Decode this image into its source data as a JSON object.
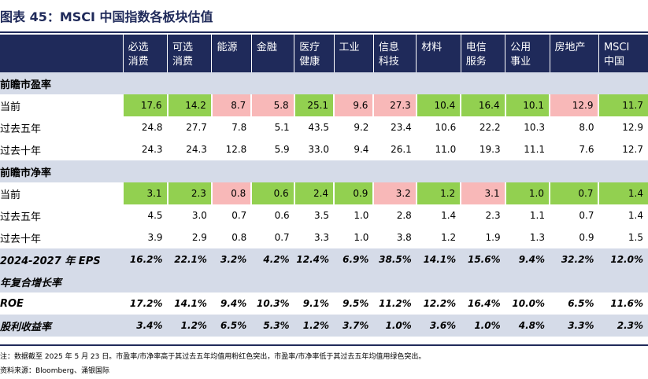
{
  "title": "图表 45：MSCI 中国指数各板块估值",
  "columns": [
    {
      "line1": "必选",
      "line2": "消费"
    },
    {
      "line1": "可选",
      "line2": "消费"
    },
    {
      "line1": "能源",
      "line2": ""
    },
    {
      "line1": "金融",
      "line2": ""
    },
    {
      "line1": "医疗",
      "line2": "健康"
    },
    {
      "line1": "工业",
      "line2": ""
    },
    {
      "line1": "信息",
      "line2": "科技"
    },
    {
      "line1": "材料",
      "line2": ""
    },
    {
      "line1": "电信",
      "line2": "服务"
    },
    {
      "line1": "公用",
      "line2": "事业"
    },
    {
      "line1": "房地产",
      "line2": ""
    },
    {
      "line1": "MSCI",
      "line2": "中国"
    }
  ],
  "pe_section": "前瞻市盈率",
  "pe_rows": [
    {
      "label": "当前",
      "values": [
        "17.6",
        "14.2",
        "8.7",
        "5.8",
        "25.1",
        "9.6",
        "27.3",
        "10.4",
        "16.4",
        "10.1",
        "12.9",
        "11.7"
      ],
      "colors": [
        "g",
        "g",
        "p",
        "p",
        "g",
        "p",
        "p",
        "g",
        "g",
        "g",
        "p",
        "g"
      ]
    },
    {
      "label": "过去五年",
      "values": [
        "24.8",
        "27.7",
        "7.8",
        "5.1",
        "43.5",
        "9.2",
        "23.4",
        "10.6",
        "22.2",
        "10.3",
        "8.0",
        "12.9"
      ]
    },
    {
      "label": "过去十年",
      "values": [
        "24.3",
        "24.3",
        "12.8",
        "5.9",
        "33.0",
        "9.4",
        "26.1",
        "11.0",
        "19.3",
        "11.1",
        "7.6",
        "12.7"
      ]
    }
  ],
  "pb_section": "前瞻市净率",
  "pb_rows": [
    {
      "label": "当前",
      "values": [
        "3.1",
        "2.3",
        "0.8",
        "0.6",
        "2.4",
        "0.9",
        "3.2",
        "1.2",
        "3.1",
        "1.0",
        "0.7",
        "1.4"
      ],
      "colors": [
        "g",
        "g",
        "p",
        "g",
        "g",
        "g",
        "p",
        "g",
        "p",
        "g",
        "g",
        "g"
      ]
    },
    {
      "label": "过去五年",
      "values": [
        "4.5",
        "3.0",
        "0.7",
        "0.6",
        "3.5",
        "1.0",
        "2.8",
        "1.4",
        "2.3",
        "1.1",
        "0.7",
        "1.4"
      ]
    },
    {
      "label": "过去十年",
      "values": [
        "3.9",
        "2.9",
        "0.8",
        "0.7",
        "3.3",
        "1.0",
        "3.8",
        "1.2",
        "1.9",
        "1.3",
        "0.9",
        "1.5"
      ]
    }
  ],
  "eps": {
    "label": "2024-2027 年 EPS",
    "label2": "年复合增长率",
    "values": [
      "16.2%",
      "22.1%",
      "3.2%",
      "4.2%",
      "12.4%",
      "6.9%",
      "38.5%",
      "14.1%",
      "15.6%",
      "9.4%",
      "32.2%",
      "12.0%"
    ]
  },
  "roe": {
    "label": "ROE",
    "values": [
      "17.2%",
      "14.1%",
      "9.4%",
      "10.3%",
      "9.1%",
      "9.5%",
      "11.2%",
      "12.2%",
      "16.4%",
      "10.0%",
      "6.5%",
      "11.6%"
    ]
  },
  "div": {
    "label": "股利收益率",
    "values": [
      "3.4%",
      "1.2%",
      "6.5%",
      "5.3%",
      "1.2%",
      "3.7%",
      "1.0%",
      "3.6%",
      "1.0%",
      "4.8%",
      "3.3%",
      "2.3%"
    ]
  },
  "note": "注：数据截至 2025 年 5 月 23 日。市盈率/市净率高于其过去五年均值用粉红色突出，市盈率/市净率低于其过去五年均值用绿色突出。",
  "source": "资料来源：Bloomberg、涌银国际",
  "colors": {
    "green": "#92d050",
    "pink": "#f8b8b8",
    "navy": "#1f2a5a",
    "band": "#d5dbe8"
  }
}
